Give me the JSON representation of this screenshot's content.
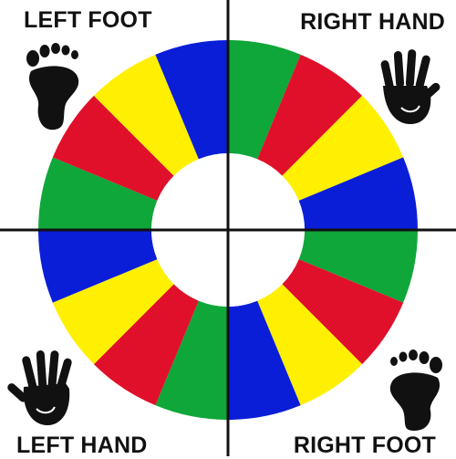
{
  "labels": {
    "top_left": "LEFT FOOT",
    "top_right": "RIGHT HAND",
    "bottom_left": "LEFT HAND",
    "bottom_right": "RIGHT FOOT"
  },
  "icons": {
    "top_left": "left-foot-icon",
    "top_right": "right-hand-icon",
    "bottom_left": "left-hand-icon",
    "bottom_right": "right-foot-icon"
  },
  "colors": {
    "red": "#e0102a",
    "yellow": "#ffef00",
    "blue": "#0a1ed8",
    "green": "#0fa63a",
    "divider": "#111111",
    "icon": "#111111"
  },
  "quadrants": [
    {
      "name": "right-hand",
      "segments": [
        "green",
        "red",
        "yellow",
        "blue"
      ]
    },
    {
      "name": "right-foot",
      "segments": [
        "green",
        "red",
        "yellow",
        "blue"
      ]
    },
    {
      "name": "left-hand",
      "segments": [
        "green",
        "red",
        "yellow",
        "blue"
      ]
    },
    {
      "name": "left-foot",
      "segments": [
        "green",
        "red",
        "yellow",
        "blue"
      ]
    }
  ]
}
